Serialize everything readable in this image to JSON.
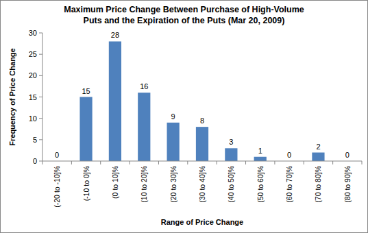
{
  "chart_data": {
    "type": "bar",
    "title": "Maximum Price Change Between Purchase of High-Volume Puts and the Expiration of the Puts (Mar 20, 2009)",
    "x_label": "Range of Price Change",
    "y_label": "Frequency of Price Change",
    "categories": [
      "(-20 to -10]%",
      "(-10 to 0]%",
      "(0 to 10]%",
      "(10 to 20]%",
      "(20 to 30]%",
      "(30 to 40]%",
      "(40 to 50]%",
      "(50 to 60]%",
      "(60 to 70]%",
      "(70 to 80]%",
      "(80 to 90]%"
    ],
    "values": [
      0,
      15,
      28,
      16,
      9,
      8,
      3,
      1,
      0,
      2,
      0
    ],
    "color": "#4f81bd",
    "ylim": [
      0,
      30
    ],
    "yticks": [
      0,
      5,
      10,
      15,
      20,
      25,
      30
    ],
    "grid": false,
    "data_labels": true
  }
}
